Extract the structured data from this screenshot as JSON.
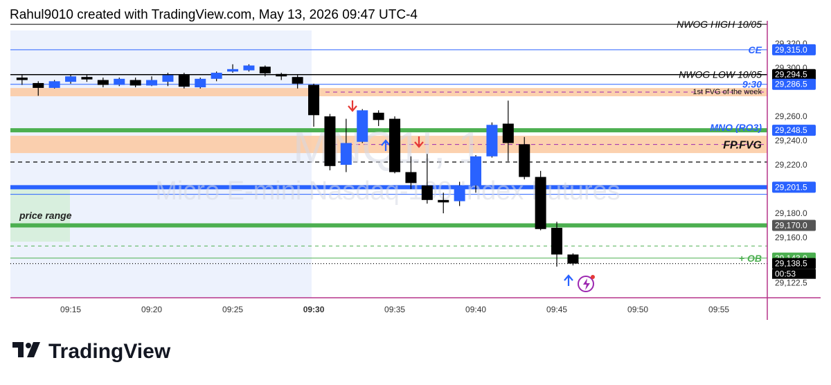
{
  "header": "Rahul9010 created with TradingView.com, May 13, 2026 09:47 UTC-4",
  "footer_logo": "TradingView",
  "chart_data": {
    "type": "candlestick",
    "symbol_watermark": "MNQ1!, 1",
    "description_watermark": "Micro E-mini Nasdaq-100 Index Futures",
    "range_box_label": "price range",
    "countdown": "00:53",
    "up_color": "#2962ff",
    "down_color": "#000000",
    "x": [
      12,
      13,
      14,
      15,
      16,
      17,
      18,
      19,
      20,
      21,
      22,
      23,
      24,
      25,
      26,
      27,
      28,
      29,
      30,
      31,
      32,
      33,
      34,
      35,
      36,
      37,
      38,
      39,
      40,
      41,
      42,
      43,
      44,
      45,
      46
    ],
    "open": [
      29292,
      29287.5,
      29283.5,
      29288.5,
      29292.5,
      29290,
      29286,
      29290,
      29285.5,
      29288.5,
      29294,
      29284,
      29291,
      29297,
      29298,
      29301,
      29295,
      29292.5,
      29286,
      29260,
      29220,
      29239,
      29263,
      29258,
      29214,
      29203,
      29191,
      29190,
      29203,
      29227,
      29254,
      29237,
      29210,
      29168,
      29146
    ],
    "high": [
      29294,
      29289,
      29290,
      29294,
      29294,
      29292,
      29292,
      29292,
      29293,
      29296,
      29296,
      29292,
      29297,
      29303,
      29303,
      29302,
      29296,
      29294,
      29287,
      29262,
      29258,
      29266,
      29265,
      29260,
      29227,
      29229,
      29197,
      29206,
      29228,
      29255,
      29273,
      29243,
      29215,
      29173,
      29147
    ],
    "low": [
      29286,
      29277,
      29283,
      29287,
      29288.5,
      29284,
      29285,
      29284,
      29285,
      29285,
      29283,
      29283,
      29289,
      29296,
      29297,
      29293,
      29290,
      29283,
      29251.5,
      29215.5,
      29214,
      29238,
      29252,
      29213,
      29200,
      29188,
      29180,
      29186,
      29197,
      29226,
      29223,
      29208,
      29166,
      29136,
      29137
    ],
    "close": [
      29290,
      29283.5,
      29289,
      29293,
      29290.5,
      29286,
      29291,
      29285.5,
      29290,
      29294,
      29284.5,
      29291,
      29296,
      29299,
      29302,
      29295.5,
      29293,
      29287,
      29261,
      29219,
      29238,
      29265,
      29257,
      29214,
      29205,
      29191,
      29189,
      29203,
      29227,
      29253,
      29238,
      29210,
      29167,
      29146,
      29138.5
    ],
    "xlim": [
      11.28,
      57.99
    ],
    "xticks": [
      {
        "value": 15,
        "label": "09:15"
      },
      {
        "value": 20,
        "label": "09:20"
      },
      {
        "value": 25,
        "label": "09:25"
      },
      {
        "value": 30,
        "label": "09:30"
      },
      {
        "value": 35,
        "label": "09:35"
      },
      {
        "value": 40,
        "label": "09:40"
      },
      {
        "value": 45,
        "label": "09:45"
      },
      {
        "value": 50,
        "label": "09:50"
      },
      {
        "value": 55,
        "label": "09:55"
      }
    ],
    "ylim": [
      29110.3,
      29338.9
    ],
    "yticks": [
      {
        "value": 29320,
        "label": "29,320.0"
      },
      {
        "value": 29300,
        "label": "29,300.0"
      },
      {
        "value": 29260,
        "label": "29,260.0"
      },
      {
        "value": 29240,
        "label": "29,240.0"
      },
      {
        "value": 29220,
        "label": "29,220.0"
      },
      {
        "value": 29180,
        "label": "29,180.0"
      },
      {
        "value": 29160,
        "label": "29,160.0"
      },
      {
        "value": 29122.5,
        "label": "29,122.5"
      }
    ],
    "bands": [
      {
        "name": "1st FVG of the week",
        "from": 29276.6,
        "to": 29283.4,
        "color": "#fbc9a0"
      },
      {
        "name": "FP.FVG",
        "from": 29229.7,
        "to": 29244,
        "color": "#fbc9a0"
      }
    ],
    "levels": [
      {
        "name": "NWOG HIGH 10/05",
        "value": 29336,
        "color": "#000000",
        "width": 1
      },
      {
        "name": "CE",
        "value": 29315,
        "value_label": "29,315.0",
        "color": "#2962ff",
        "width": 1
      },
      {
        "name": "NWOG LOW 10/05",
        "value": 29294.5,
        "value_label": "29,294.5",
        "color": "#000000",
        "width": 1.5
      },
      {
        "name": "9:30",
        "value": 29286.5,
        "value_label": "29,286.5",
        "color": "#2962ff",
        "width": 1
      },
      {
        "name": "MNO (RO3)",
        "value": 29248.5,
        "value_label": "29,248.5",
        "color": "#4caf50",
        "label_color": "#2962ff",
        "width": 6
      },
      {
        "value": 29222.3,
        "color": "#000000",
        "width": 1.2,
        "dash": "6 5"
      },
      {
        "value": 29201.5,
        "value_label": "29,201.5",
        "color": "#2962ff",
        "width": 6
      },
      {
        "value": 29195.7,
        "color": "#2962ff",
        "width": 1
      },
      {
        "value": 29170,
        "value_label": "29,170.0",
        "color": "#4caf50",
        "box_color": "#555555",
        "width": 6
      },
      {
        "value": 29153,
        "color": "#4caf50",
        "width": 1,
        "dash": "5 5"
      },
      {
        "name": "+ OB",
        "value": 29143,
        "value_label": "29,143.0",
        "color": "#4caf50",
        "width": 1
      },
      {
        "value": 29138.5,
        "value_label": "29,138.5",
        "color": "#000000",
        "width": 1.2,
        "dash": "1 3"
      }
    ]
  }
}
